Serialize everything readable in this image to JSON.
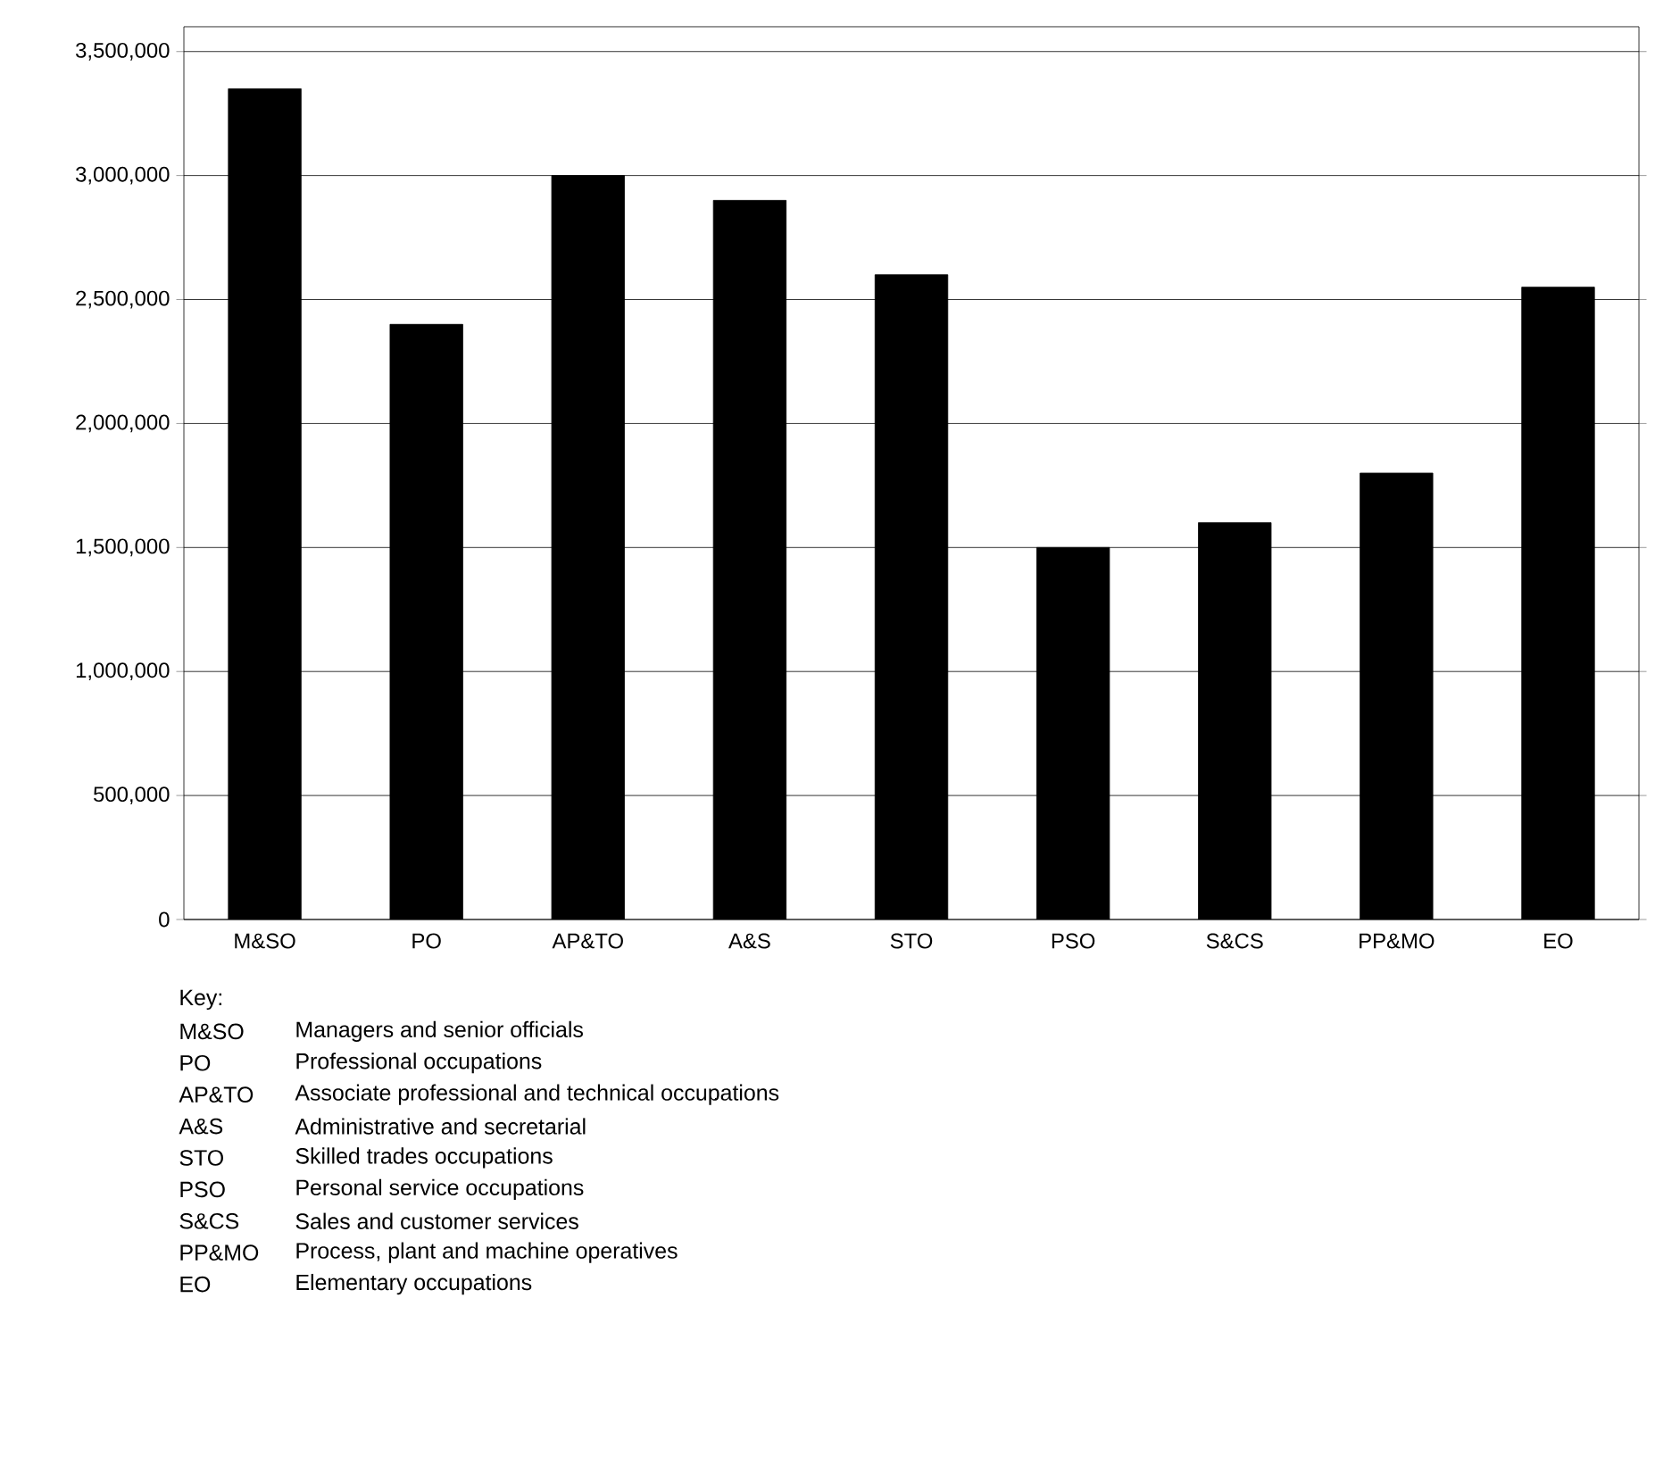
{
  "chart_data": {
    "type": "bar",
    "categories": [
      "M&SO",
      "PO",
      "AP&TO",
      "A&S",
      "STO",
      "PSO",
      "S&CS",
      "PP&MO",
      "EO"
    ],
    "values": [
      3350000,
      2400000,
      3000000,
      2900000,
      2600000,
      1500000,
      1600000,
      1800000,
      2550000
    ],
    "color": "#000000",
    "ylim": [
      0,
      3600000
    ],
    "yticks": [
      {
        "value": 0,
        "label": "0"
      },
      {
        "value": 500000,
        "label": "500,000"
      },
      {
        "value": 1000000,
        "label": "1,000,000"
      },
      {
        "value": 1500000,
        "label": "1,500,000"
      },
      {
        "value": 2000000,
        "label": "2,000,000"
      },
      {
        "value": 2500000,
        "label": "2,500,000"
      },
      {
        "value": 3000000,
        "label": "3,000,000"
      },
      {
        "value": 3500000,
        "label": "3,500,000"
      }
    ],
    "grid": "y",
    "annotations": [
      "Key:",
      "Managers and senior officials",
      "Professional occupations",
      "Associate professional and technical occupations",
      "Administrative and secretarial",
      "Skilled trades occupations",
      "Personal service occupations",
      "Sales and customer services",
      "Process, plant and machine operatives",
      "Elementary occupations"
    ]
  }
}
